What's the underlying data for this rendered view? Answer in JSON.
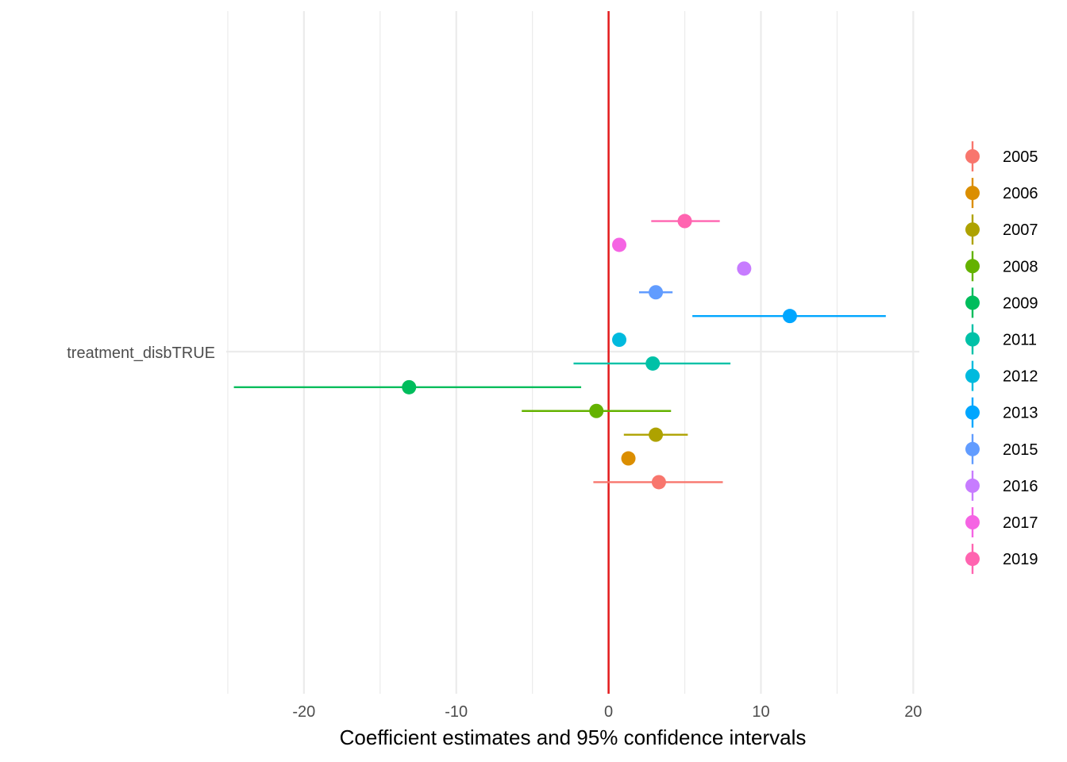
{
  "chart_data": {
    "type": "scatter",
    "title": "",
    "xlabel": "Coefficient estimates and 95% confidence intervals",
    "ylabel": "",
    "x_ticks": [
      -20,
      -10,
      0,
      10,
      20
    ],
    "xlim": [
      -25.1,
      20.4
    ],
    "y_category": "treatment_disbTRUE",
    "reference_line": {
      "x": 0,
      "color": "#e31a1c"
    },
    "grid": true,
    "legend_position": "right",
    "series": [
      {
        "name": "2005",
        "estimate": 3.3,
        "lower": -1.0,
        "upper": 7.5,
        "color": "#F8766D"
      },
      {
        "name": "2006",
        "estimate": 1.3,
        "lower": 1.3,
        "upper": 1.3,
        "color": "#DB8E00"
      },
      {
        "name": "2007",
        "estimate": 3.1,
        "lower": 1.0,
        "upper": 5.2,
        "color": "#AEA200"
      },
      {
        "name": "2008",
        "estimate": -0.8,
        "lower": -5.7,
        "upper": 4.1,
        "color": "#64B200"
      },
      {
        "name": "2009",
        "estimate": -13.1,
        "lower": -24.6,
        "upper": -1.8,
        "color": "#00BD5C"
      },
      {
        "name": "2011",
        "estimate": 2.9,
        "lower": -2.3,
        "upper": 8.0,
        "color": "#00C1A7"
      },
      {
        "name": "2012",
        "estimate": 0.7,
        "lower": 0.7,
        "upper": 0.7,
        "color": "#00BADE"
      },
      {
        "name": "2013",
        "estimate": 11.9,
        "lower": 5.5,
        "upper": 18.2,
        "color": "#00A6FF"
      },
      {
        "name": "2015",
        "estimate": 3.1,
        "lower": 2.0,
        "upper": 4.2,
        "color": "#619CFF"
      },
      {
        "name": "2016",
        "estimate": 8.9,
        "lower": 8.9,
        "upper": 8.9,
        "color": "#C77CFF"
      },
      {
        "name": "2017",
        "estimate": 0.7,
        "lower": 0.7,
        "upper": 0.7,
        "color": "#F564E3"
      },
      {
        "name": "2019",
        "estimate": 5.0,
        "lower": 2.8,
        "upper": 7.3,
        "color": "#FF64B0"
      }
    ]
  }
}
